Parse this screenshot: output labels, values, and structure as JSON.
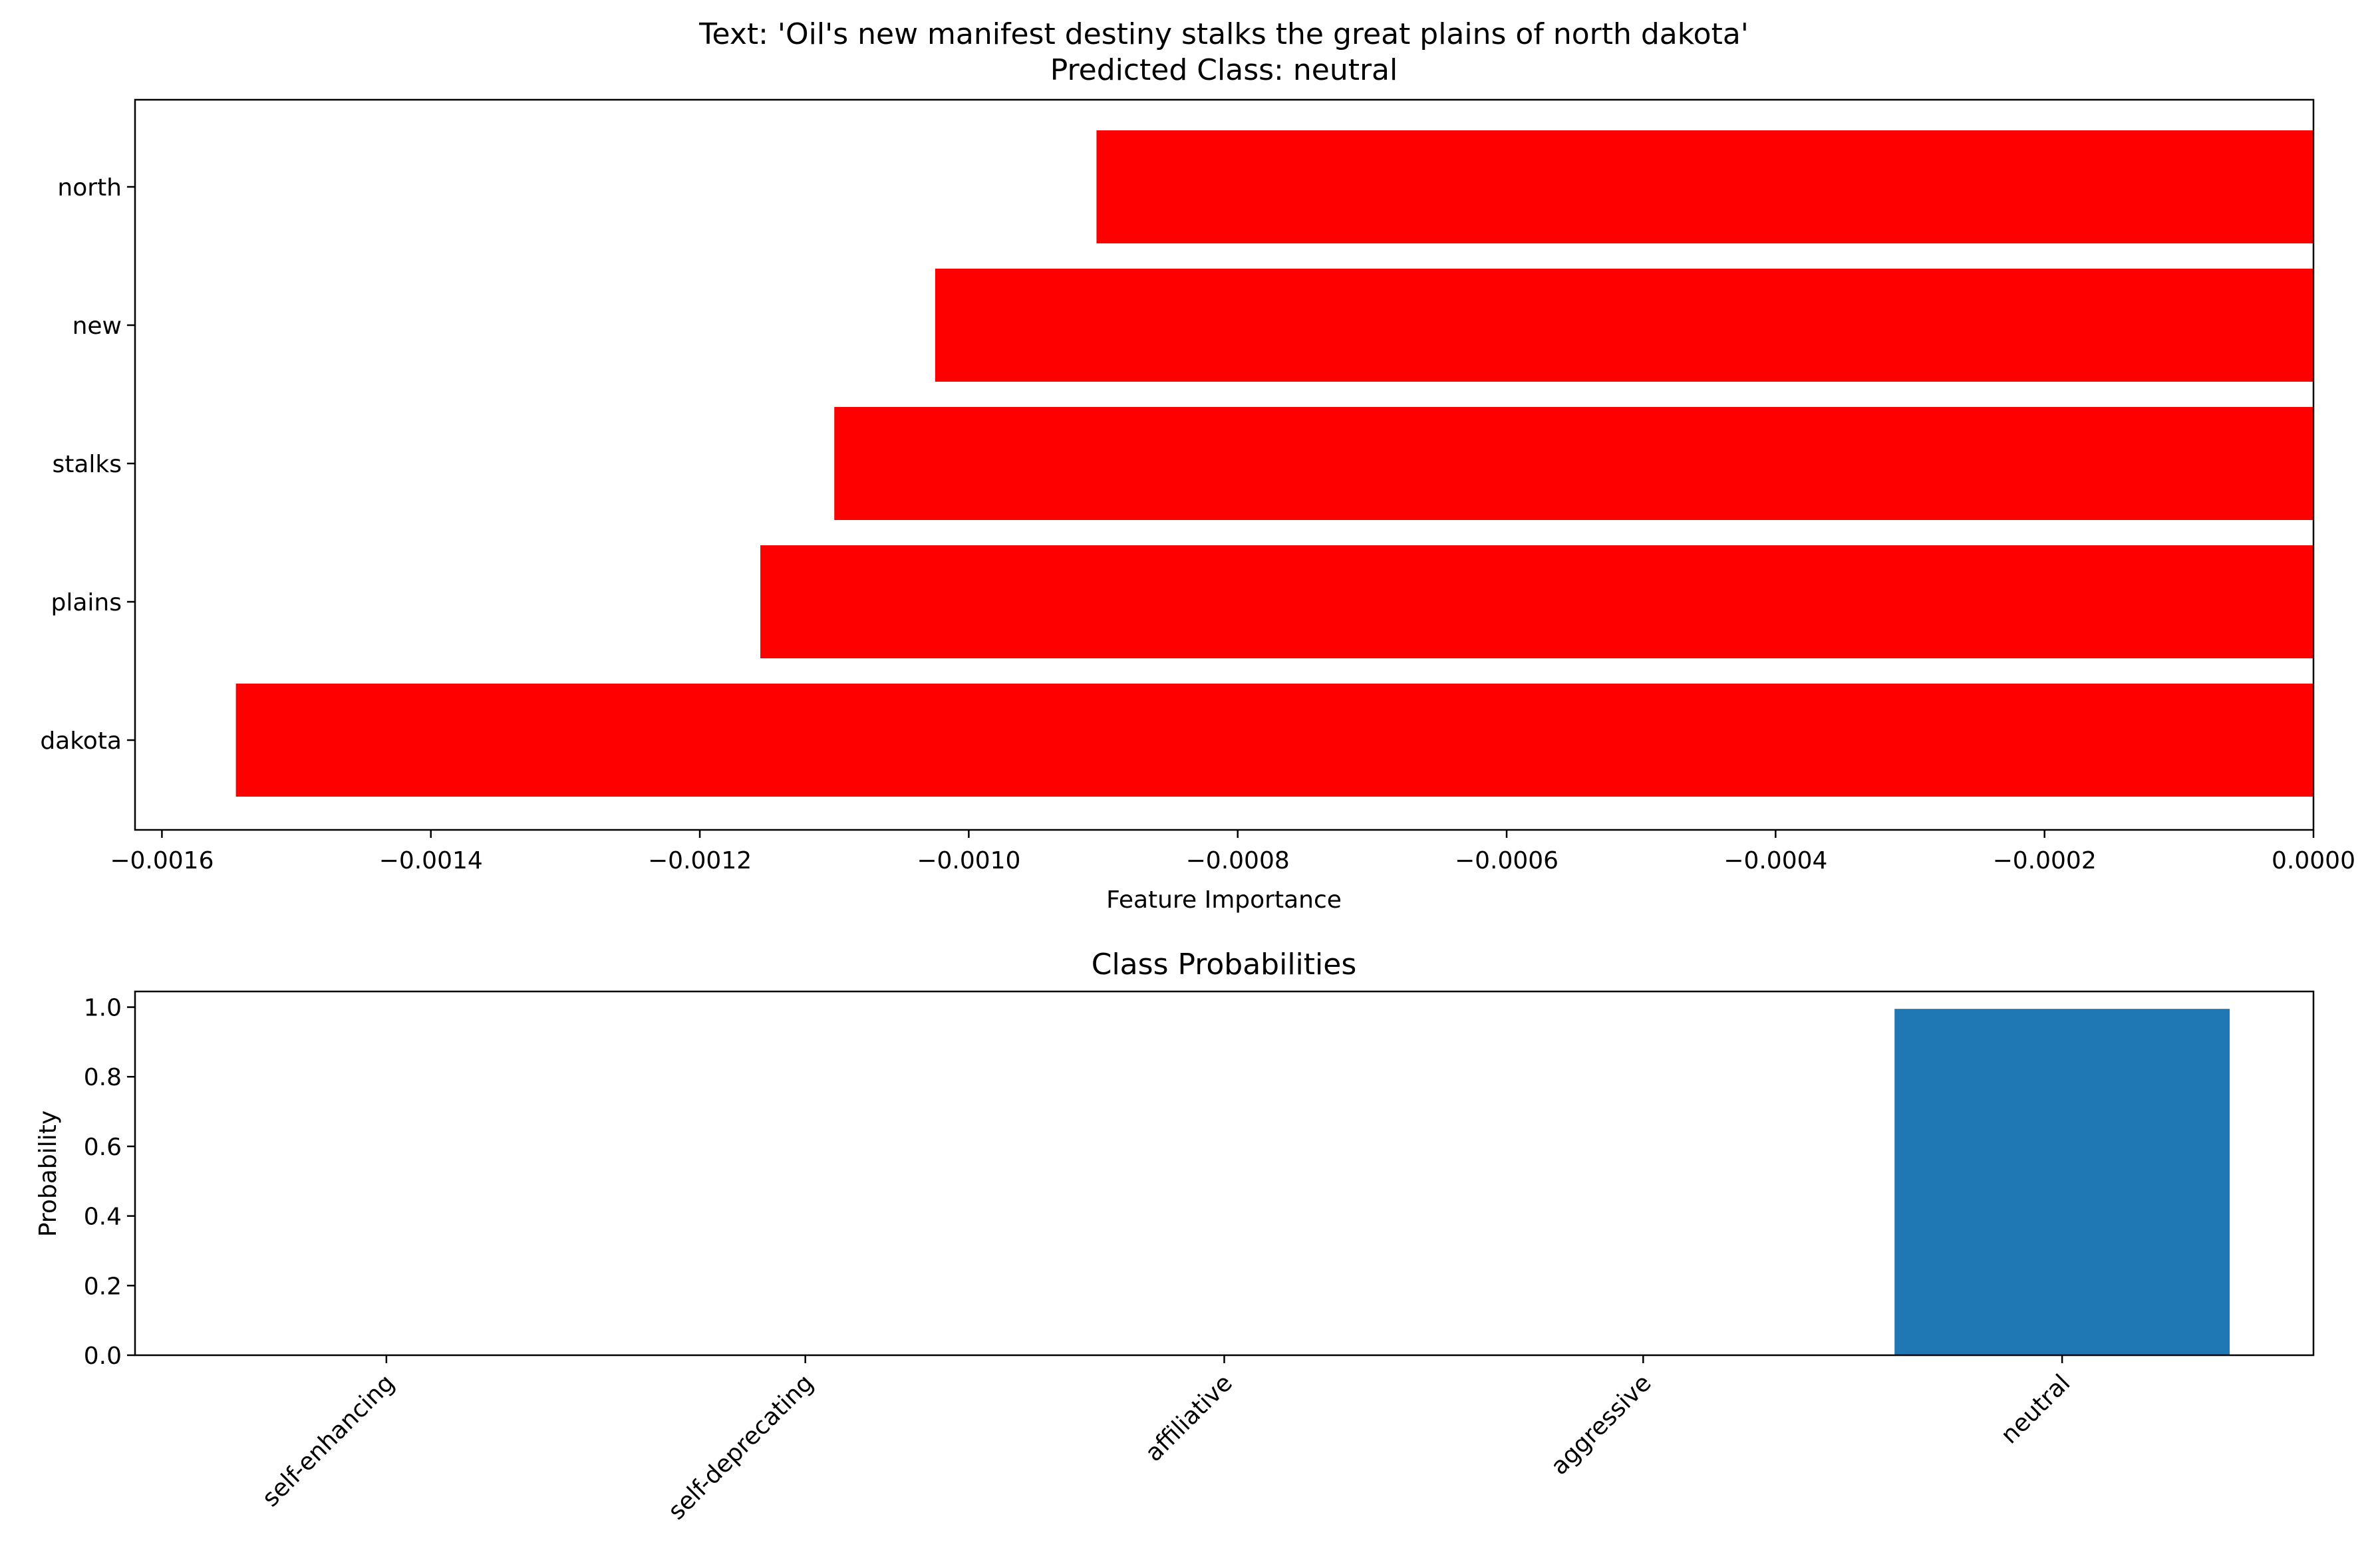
{
  "chart_data": [
    {
      "type": "bar",
      "orientation": "horizontal",
      "title": "Text: 'Oil's new manifest destiny stalks the great plains of north dakota'",
      "subtitle": "Predicted Class: neutral",
      "xlabel": "Feature Importance",
      "ylabel": "",
      "categories": [
        "north",
        "new",
        "stalks",
        "plains",
        "dakota"
      ],
      "values": [
        -0.000905,
        -0.001025,
        -0.0011,
        -0.001155,
        -0.001545
      ],
      "xlim": [
        -0.00162,
        0.0
      ],
      "xticks": [
        -0.0016,
        -0.0014,
        -0.0012,
        -0.001,
        -0.0008,
        -0.0006,
        -0.0004,
        -0.0002,
        0.0
      ],
      "xtick_labels": [
        "−0.0016",
        "−0.0014",
        "−0.0012",
        "−0.0010",
        "−0.0008",
        "−0.0006",
        "−0.0004",
        "−0.0002",
        "0.0000"
      ],
      "bar_color": "#ff0000",
      "grid": false
    },
    {
      "type": "bar",
      "orientation": "vertical",
      "title": "Class Probabilities",
      "xlabel": "",
      "ylabel": "Probability",
      "categories": [
        "self-enhancing",
        "self-deprecating",
        "affiliative",
        "aggressive",
        "neutral"
      ],
      "values": [
        0.0005,
        0.0005,
        0.0005,
        0.002,
        0.995
      ],
      "ylim": [
        0.0,
        1.045
      ],
      "yticks": [
        0.0,
        0.2,
        0.4,
        0.6,
        0.8,
        1.0
      ],
      "ytick_labels": [
        "0.0",
        "0.2",
        "0.4",
        "0.6",
        "0.8",
        "1.0"
      ],
      "bar_color": "#1f77b4",
      "grid": false
    }
  ]
}
